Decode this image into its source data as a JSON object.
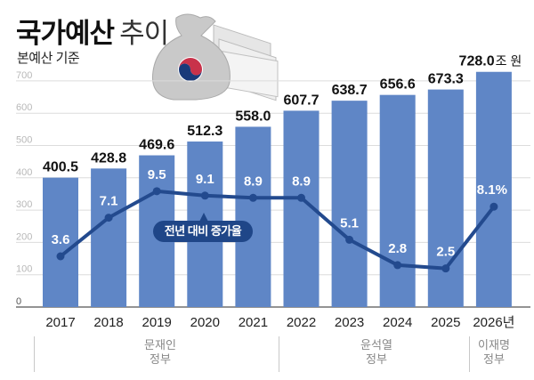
{
  "header": {
    "title_bold": "국가예산",
    "title_light": "추이",
    "subtitle": "본예산 기준"
  },
  "legend": {
    "label": "전년 대비 증가율"
  },
  "eras": [
    {
      "line1": "문재인",
      "line2": "정부"
    },
    {
      "line1": "윤석열",
      "line2": "정부"
    },
    {
      "line1": "이재명",
      "line2": "정부"
    }
  ],
  "colors": {
    "bar": "#5f86c6",
    "line": "#234a8e",
    "grid": "#dcdcdc",
    "legend_bg": "#1f4688"
  },
  "chart_data": {
    "type": "bar",
    "title": "국가예산 추이",
    "subtitle": "본예산 기준",
    "xlabel": "",
    "ylabel": "",
    "unit": "조 원",
    "categories": [
      "2017",
      "2018",
      "2019",
      "2020",
      "2021",
      "2022",
      "2023",
      "2024",
      "2025",
      "2026년"
    ],
    "ylim": [
      0,
      700
    ],
    "yticks": [
      0,
      100,
      200,
      300,
      400,
      500,
      600,
      700
    ],
    "grid": true,
    "series": [
      {
        "name": "국가예산",
        "type": "bar",
        "values": [
          400.5,
          428.8,
          469.6,
          512.3,
          558.0,
          607.7,
          638.7,
          656.6,
          673.3,
          728.0
        ],
        "labels": [
          "400.5",
          "428.8",
          "469.6",
          "512.3",
          "558.0",
          "607.7",
          "638.7",
          "656.6",
          "673.3",
          "728.0"
        ]
      },
      {
        "name": "전년 대비 증가율",
        "type": "line",
        "unit": "%",
        "values": [
          3.6,
          7.1,
          9.5,
          9.1,
          8.9,
          8.9,
          5.1,
          2.8,
          2.5,
          8.1
        ],
        "labels": [
          "3.6",
          "7.1",
          "9.5",
          "9.1",
          "8.9",
          "8.9",
          "5.1",
          "2.8",
          "2.5",
          "8.1%"
        ]
      }
    ],
    "annotations": [
      "문재인 정부 (2017–2021)",
      "윤석열 정부 (2022–2025)",
      "이재명 정부 (2026)"
    ]
  }
}
